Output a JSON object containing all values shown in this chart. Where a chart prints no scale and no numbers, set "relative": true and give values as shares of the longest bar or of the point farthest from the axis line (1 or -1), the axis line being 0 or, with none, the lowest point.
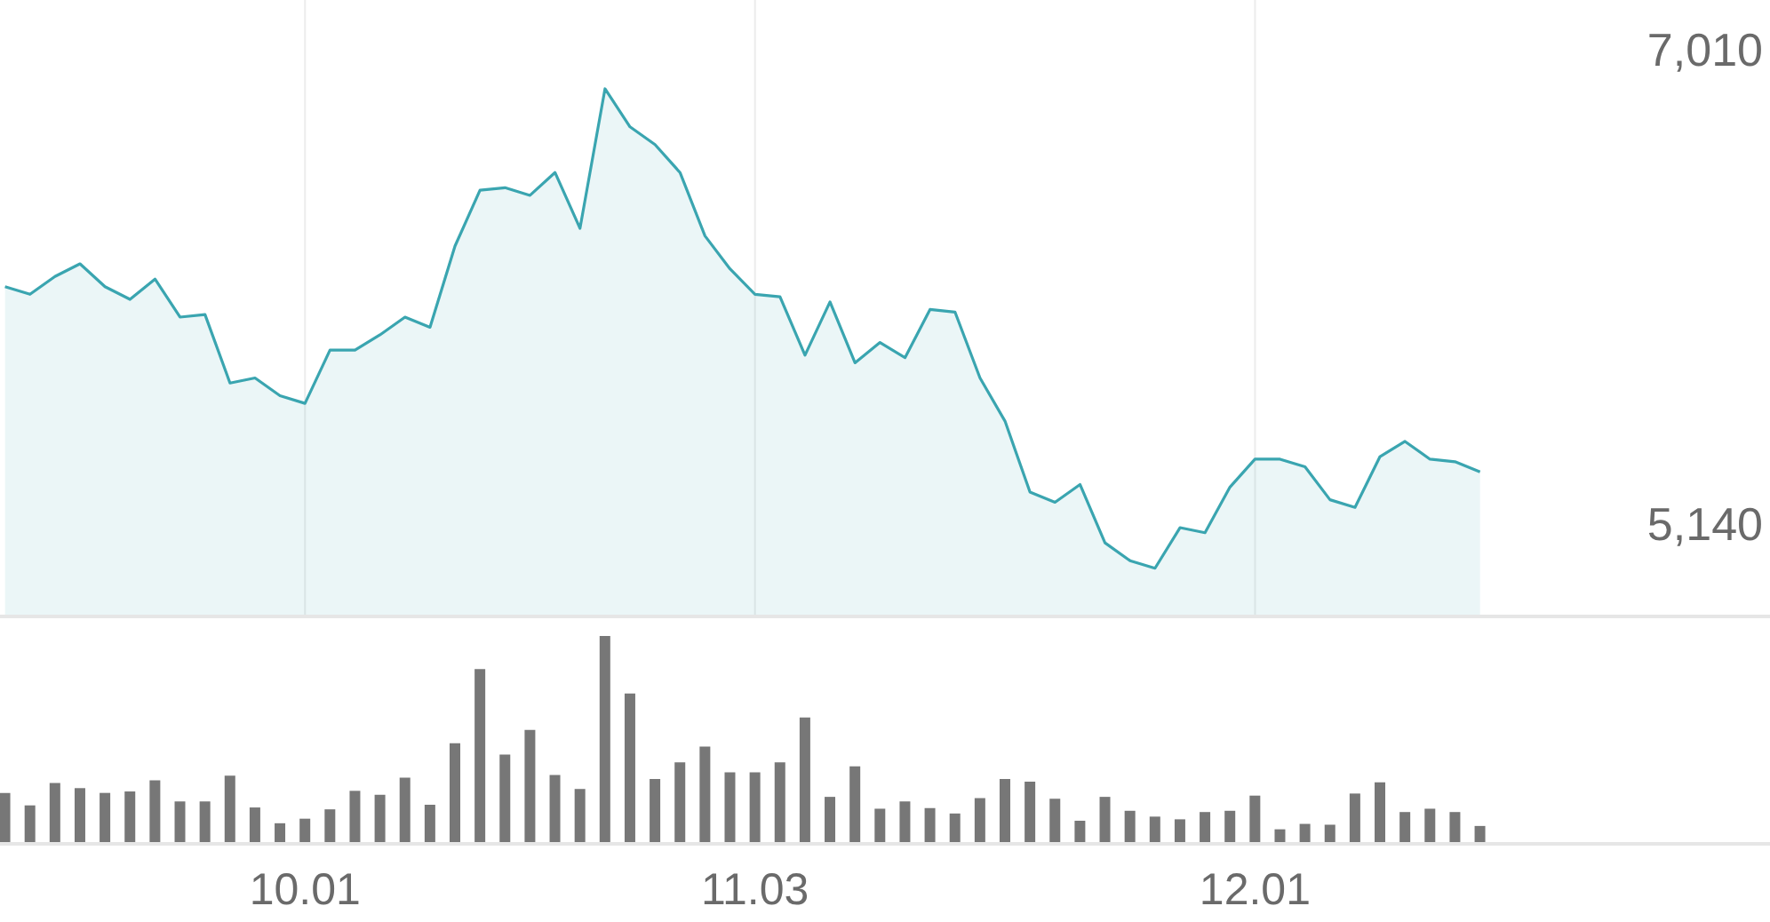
{
  "chart_data": [
    {
      "type": "area",
      "categories": [
        null,
        null,
        null,
        null,
        null,
        null,
        null,
        null,
        null,
        null,
        null,
        null,
        "10.01",
        null,
        null,
        null,
        null,
        null,
        null,
        null,
        null,
        null,
        null,
        null,
        null,
        null,
        null,
        null,
        null,
        null,
        "11.03",
        null,
        null,
        null,
        null,
        null,
        null,
        null,
        null,
        null,
        null,
        null,
        null,
        null,
        null,
        null,
        null,
        null,
        null,
        null,
        "12.01",
        null,
        null,
        null,
        null,
        null,
        null,
        null,
        null,
        null,
        null,
        null,
        null,
        null,
        null,
        null,
        null,
        null,
        null,
        null,
        null
      ],
      "series": [
        {
          "color": "#3aa5b0",
          "values": [
            6090,
            6060,
            6130,
            6180,
            6090,
            6040,
            6120,
            5970,
            5980,
            5710,
            5730,
            5660,
            5630,
            5840,
            5840,
            5900,
            5970,
            5930,
            6250,
            6470,
            6480,
            6450,
            6540,
            6320,
            6870,
            6720,
            6650,
            6540,
            6290,
            6160,
            6060,
            6050,
            5820,
            6030,
            5790,
            5870,
            5810,
            6000,
            5990,
            5730,
            5560,
            5280,
            5240,
            5310,
            5080,
            5010,
            4980,
            5140,
            5120,
            5300,
            5410,
            5410,
            5380,
            5250,
            5220,
            5420,
            5480,
            5410,
            5400,
            5360,
            null,
            null,
            null,
            null,
            null,
            null,
            null,
            null,
            null,
            null,
            null
          ]
        }
      ],
      "ylim": [
        4790,
        7220
      ],
      "yticks": [
        {
          "value": 5140,
          "label": "5,140"
        },
        {
          "value": 7010,
          "label": "7,010"
        }
      ],
      "grid": "x",
      "tick_labels": "y"
    },
    {
      "type": "bar",
      "relative": true,
      "categories": [
        null,
        null,
        null,
        null,
        null,
        null,
        null,
        null,
        null,
        null,
        null,
        null,
        "10.01",
        null,
        null,
        null,
        null,
        null,
        null,
        null,
        null,
        null,
        null,
        null,
        null,
        null,
        null,
        null,
        null,
        null,
        "11.03",
        null,
        null,
        null,
        null,
        null,
        null,
        null,
        null,
        null,
        null,
        null,
        null,
        null,
        null,
        null,
        null,
        null,
        null,
        null,
        "12.01",
        null,
        null,
        null,
        null,
        null,
        null,
        null,
        null,
        null,
        null,
        null,
        null,
        null,
        null,
        null,
        null,
        null,
        null,
        null,
        null
      ],
      "series": [
        {
          "color": "#777777",
          "values": [
            0.245,
            0.185,
            0.293,
            0.268,
            0.245,
            0.252,
            0.306,
            0.204,
            0.204,
            0.328,
            0.175,
            0.099,
            0.121,
            0.166,
            0.255,
            0.236,
            0.318,
            0.188,
            0.484,
            0.841,
            0.43,
            0.548,
            0.331,
            0.264,
            1,
            0.723,
            0.312,
            0.392,
            0.468,
            0.344,
            0.344,
            0.392,
            0.608,
            0.226,
            0.373,
            0.169,
            0.204,
            0.172,
            0.146,
            0.22,
            0.312,
            0.299,
            0.217,
            0.111,
            0.226,
            0.159,
            0.131,
            0.118,
            0.153,
            0.159,
            0.232,
            0.07,
            0.096,
            0.092,
            0.242,
            0.296,
            0.153,
            0.169,
            0.153,
            0.086,
            null,
            null,
            null,
            null,
            null,
            null,
            null,
            null,
            null,
            null,
            null
          ]
        }
      ],
      "tick_labels": "x"
    }
  ]
}
